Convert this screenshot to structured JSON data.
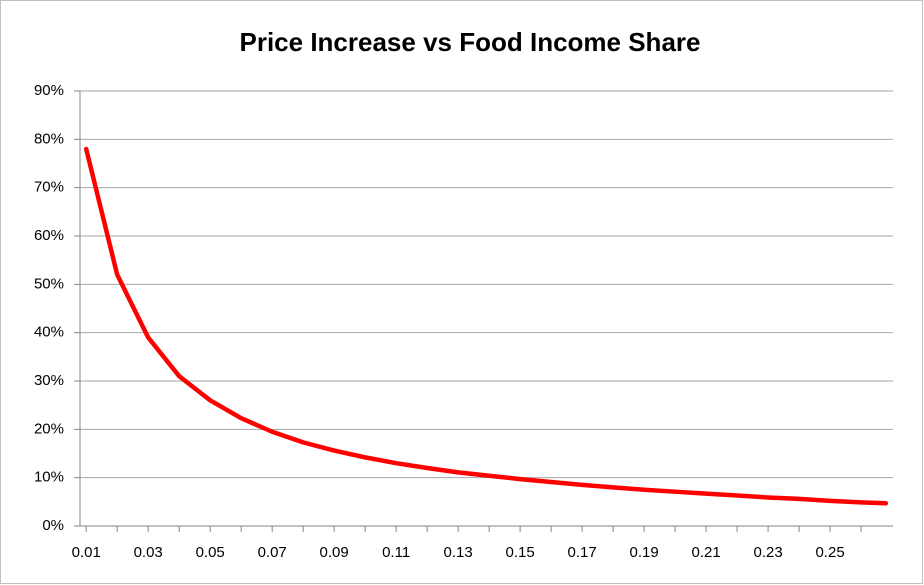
{
  "chart_data": {
    "type": "line",
    "title": "Price Increase vs Food Income Share",
    "x": [
      0.01,
      0.02,
      0.03,
      0.04,
      0.05,
      0.06,
      0.07,
      0.08,
      0.09,
      0.1,
      0.11,
      0.12,
      0.13,
      0.14,
      0.15,
      0.16,
      0.17,
      0.18,
      0.19,
      0.2,
      0.21,
      0.22,
      0.23,
      0.24,
      0.25,
      0.26,
      0.268
    ],
    "series": [
      {
        "name": "Price Increase",
        "color": "#ff0000",
        "values": [
          78,
          52,
          39,
          31,
          26,
          22.3,
          19.5,
          17.3,
          15.6,
          14.2,
          13,
          12,
          11.1,
          10.4,
          9.7,
          9.1,
          8.5,
          8,
          7.5,
          7.1,
          6.7,
          6.3,
          5.9,
          5.6,
          5.2,
          4.9,
          4.7
        ]
      }
    ],
    "xlim": [
      0.008,
      0.2703
    ],
    "xticks": [
      0.01,
      0.03,
      0.05,
      0.07,
      0.09,
      0.11,
      0.13,
      0.15,
      0.17,
      0.19,
      0.21,
      0.23,
      0.25
    ],
    "xminorticks": [
      0.02,
      0.04,
      0.06,
      0.08,
      0.1,
      0.12,
      0.14,
      0.16,
      0.18,
      0.2,
      0.22,
      0.24,
      0.26
    ],
    "ylim": [
      0,
      90
    ],
    "yticks": [
      {
        "value": 0,
        "label": "0%"
      },
      {
        "value": 10,
        "label": "10%"
      },
      {
        "value": 20,
        "label": "20%"
      },
      {
        "value": 30,
        "label": "30%"
      },
      {
        "value": 40,
        "label": "40%"
      },
      {
        "value": 50,
        "label": "50%"
      },
      {
        "value": 60,
        "label": "60%"
      },
      {
        "value": 70,
        "label": "70%"
      },
      {
        "value": 80,
        "label": "80%"
      },
      {
        "value": 90,
        "label": "90%"
      }
    ],
    "grid": true
  }
}
